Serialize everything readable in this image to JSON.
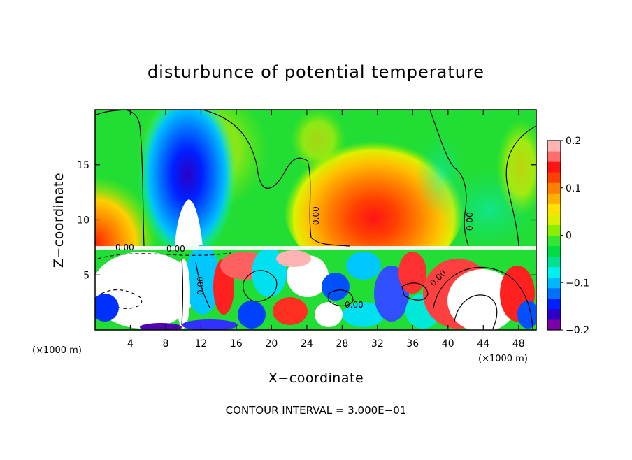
{
  "chart_data": {
    "type": "heatmap",
    "title": "disturbunce of potential temperature",
    "xlabel": "X−coordinate",
    "ylabel": "Z−coordinate",
    "x_unit_left": "(×1000 m)",
    "x_unit_right": "(×1000 m)",
    "xlim": [
      0,
      50
    ],
    "ylim": [
      0,
      20
    ],
    "x_ticks": [
      4,
      8,
      12,
      16,
      20,
      24,
      28,
      32,
      36,
      40,
      44,
      48
    ],
    "x_tick_labels": [
      "4",
      "8",
      "12",
      "16",
      "20",
      "24",
      "28",
      "32",
      "36",
      "40",
      "44",
      "48"
    ],
    "y_ticks": [
      5,
      10,
      15
    ],
    "y_tick_labels": [
      "5",
      "10",
      "15"
    ],
    "colorbar": {
      "range": [
        -0.2,
        0.2
      ],
      "ticks": [
        0.2,
        0.1,
        0,
        -0.1,
        -0.2
      ],
      "tick_labels": [
        "0.2",
        "0.1",
        "0",
        "−0.1",
        "−0.2"
      ],
      "colors": [
        "#7b00a8",
        "#2b00c8",
        "#0020ff",
        "#0070ff",
        "#00b8ff",
        "#00f0f0",
        "#00e090",
        "#00dd44",
        "#33e833",
        "#88f000",
        "#d8f000",
        "#ffe000",
        "#ffb000",
        "#ff8000",
        "#ff4000",
        "#ff1414",
        "#ff6e6e",
        "#ffb4b4"
      ]
    },
    "contour_labels": [
      "0.00",
      "0.00",
      "0.00",
      "0.00",
      "0.00",
      "0.00",
      "0.00"
    ],
    "contour_interval_text": "CONTOUR INTERVAL = 3.000E−01"
  }
}
